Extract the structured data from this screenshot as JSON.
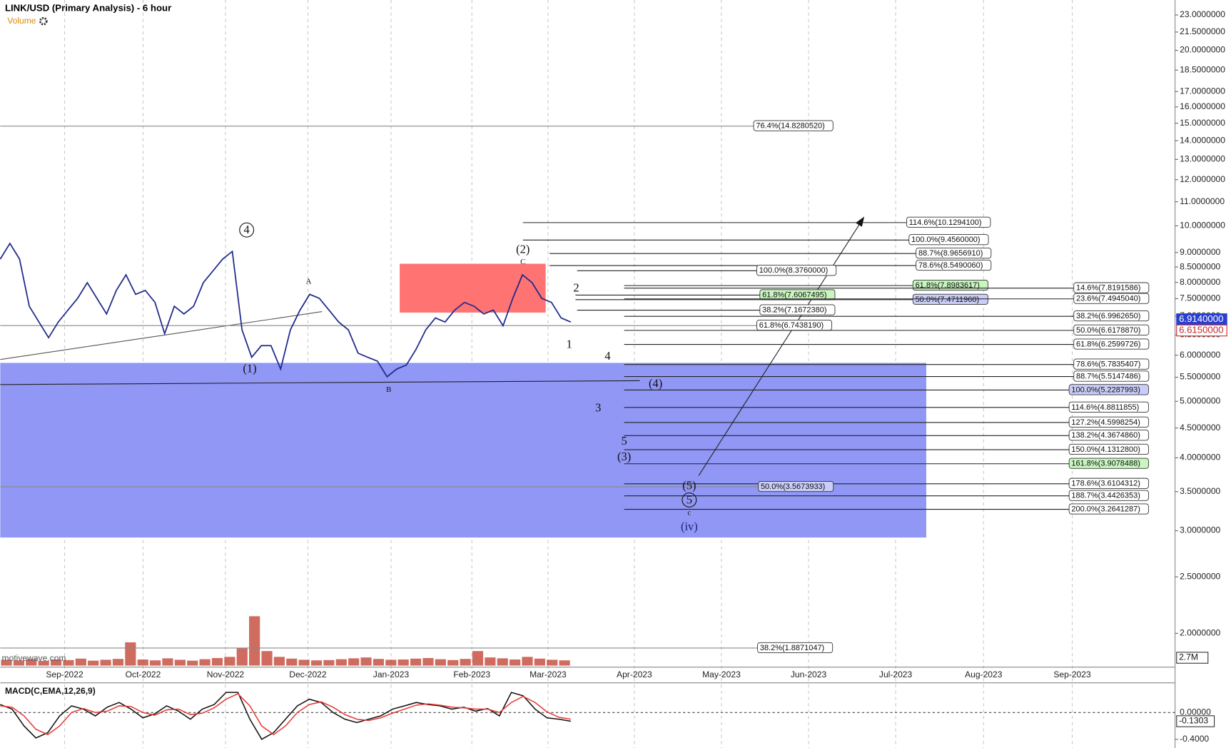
{
  "chart_data": {
    "type": "line",
    "title": "LINK/USD (Primary Analysis) - 6 hour",
    "indicator_label": "Volume",
    "watermark": "motivewave.com",
    "log_scale": true,
    "ylim": [
      1.75,
      24.4
    ],
    "yticks": [
      {
        "value": 23,
        "label": "23.0000000"
      },
      {
        "value": 21.5,
        "label": "21.5000000"
      },
      {
        "value": 20,
        "label": "20.0000000"
      },
      {
        "value": 18.5,
        "label": "18.5000000"
      },
      {
        "value": 17,
        "label": "17.0000000"
      },
      {
        "value": 16,
        "label": "16.0000000"
      },
      {
        "value": 15,
        "label": "15.0000000"
      },
      {
        "value": 14,
        "label": "14.0000000"
      },
      {
        "value": 13,
        "label": "13.0000000"
      },
      {
        "value": 12,
        "label": "12.0000000"
      },
      {
        "value": 11,
        "label": "11.0000000"
      },
      {
        "value": 10,
        "label": "10.0000000"
      },
      {
        "value": 9,
        "label": "9.0000000"
      },
      {
        "value": 8.5,
        "label": "8.5000000"
      },
      {
        "value": 8,
        "label": "8.0000000"
      },
      {
        "value": 7.5,
        "label": "7.5000000"
      },
      {
        "value": 7,
        "label": "7.0000000"
      },
      {
        "value": 6.5,
        "label": "6.5000000"
      },
      {
        "value": 6,
        "label": "6.0000000"
      },
      {
        "value": 5.5,
        "label": "5.5000000"
      },
      {
        "value": 5,
        "label": "5.0000000"
      },
      {
        "value": 4.5,
        "label": "4.5000000"
      },
      {
        "value": 4,
        "label": "4.0000000"
      },
      {
        "value": 3.5,
        "label": "3.5000000"
      },
      {
        "value": 3,
        "label": "3.0000000"
      },
      {
        "value": 2.5,
        "label": "2.5000000"
      },
      {
        "value": 2,
        "label": "2.0000000"
      }
    ],
    "xticks": [
      "Sep-2022",
      "Oct-2022",
      "Nov-2022",
      "Dec-2022",
      "Jan-2023",
      "Feb-2023",
      "Mar-2023",
      "Apr-2023",
      "May-2023",
      "Jun-2023",
      "Jul-2023",
      "Aug-2023",
      "Sep-2023"
    ],
    "grid": true,
    "series": [
      {
        "name": "LINK/USD",
        "color": "#1f2a8a",
        "values": [
          8.77,
          9.33,
          8.77,
          7.28,
          6.84,
          6.43,
          6.84,
          7.17,
          7.51,
          7.99,
          7.51,
          7.06,
          7.75,
          8.24,
          7.63,
          7.75,
          7.39,
          6.53,
          7.28,
          7.06,
          7.28,
          7.99,
          8.37,
          8.77,
          9.04,
          6.63,
          5.95,
          6.23,
          6.23,
          5.68,
          6.63,
          7.17,
          7.63,
          7.51,
          7.17,
          6.84,
          6.63,
          6.05,
          5.95,
          5.86,
          5.51,
          5.68,
          5.77,
          6.14,
          6.63,
          6.95,
          6.84,
          7.17,
          7.39,
          7.28,
          7.06,
          7.17,
          6.74,
          7.51,
          8.24,
          7.99,
          7.51,
          7.39,
          6.95,
          6.84
        ]
      }
    ],
    "price_labels": [
      {
        "value": 6.914,
        "label": "6.9140000",
        "color": "#2a3fd0"
      },
      {
        "value": 6.615,
        "label": "6.6150000",
        "color": "#c62828"
      }
    ],
    "zones": [
      {
        "color": "#ff7373",
        "top": 8.61,
        "bottom": 7.1
      },
      {
        "color": "#9097f5",
        "top": 5.82,
        "bottom": 2.92
      }
    ],
    "levels": [
      {
        "label": "76.4%(14.8280520)",
        "value": 14.828052,
        "color": "#ffffff"
      },
      {
        "label": "114.6%(10.1294100)",
        "value": 10.12941,
        "color": "#ffffff"
      },
      {
        "label": "100.0%(9.4560000)",
        "value": 9.456,
        "color": "#ffffff"
      },
      {
        "label": "88.7%(8.9656910)",
        "value": 8.965691,
        "color": "#ffffff"
      },
      {
        "label": "78.6%(8.5490060)",
        "value": 8.549006,
        "color": "#ffffff"
      },
      {
        "label": "100.0%(8.3760000)",
        "value": 8.376,
        "color": "#ffffff"
      },
      {
        "label": "61.8%(7.8983617)",
        "value": 7.8983617,
        "color": "#c8f5c0"
      },
      {
        "label": "14.6%(7.8191586)",
        "value": 7.8191586,
        "color": "#ffffff"
      },
      {
        "label": "61.8%(7.6067495)",
        "value": 7.6067495,
        "color": "#c8f5c0"
      },
      {
        "label": "50.0%(7.4711960)",
        "value": 7.471196,
        "color": "#c9cdf7"
      },
      {
        "label": "23.6%(7.4945040)",
        "value": 7.494504,
        "color": "#ffffff"
      },
      {
        "label": "38.2%(7.1672380)",
        "value": 7.167238,
        "color": "#ffffff"
      },
      {
        "label": "38.2%(6.9962650)",
        "value": 6.996265,
        "color": "#ffffff"
      },
      {
        "label": "61.8%(6.7438190)",
        "value": 6.743819,
        "color": "#ffffff"
      },
      {
        "label": "50.0%(6.6178870)",
        "value": 6.617887,
        "color": "#ffffff"
      },
      {
        "label": "61.8%(6.2599726)",
        "value": 6.2599726,
        "color": "#ffffff"
      },
      {
        "label": "78.6%(5.7835407)",
        "value": 5.7835407,
        "color": "#ffffff"
      },
      {
        "label": "88.7%(5.5147486)",
        "value": 5.5147486,
        "color": "#ffffff"
      },
      {
        "label": "100.0%(5.2287993)",
        "value": 5.2287993,
        "color": "#c9cdf7"
      },
      {
        "label": "114.6%(4.8811855)",
        "value": 4.8811855,
        "color": "#ffffff"
      },
      {
        "label": "127.2%(4.5998254)",
        "value": 4.5998254,
        "color": "#ffffff"
      },
      {
        "label": "138.2%(4.3674860)",
        "value": 4.367486,
        "color": "#ffffff"
      },
      {
        "label": "150.0%(4.1312800)",
        "value": 4.13128,
        "color": "#ffffff"
      },
      {
        "label": "161.8%(3.9078488)",
        "value": 3.9078488,
        "color": "#c8f5c0"
      },
      {
        "label": "178.6%(3.6104312)",
        "value": 3.6104312,
        "color": "#ffffff"
      },
      {
        "label": "188.7%(3.4426353)",
        "value": 3.4426353,
        "color": "#ffffff"
      },
      {
        "label": "200.0%(3.2641287)",
        "value": 3.2641287,
        "color": "#ffffff"
      },
      {
        "label": "50.0%(3.5673933)",
        "value": 3.5673933,
        "color": "#c9cdf7"
      },
      {
        "label": "38.2%(1.8871047)",
        "value": 1.8871047,
        "color": "#ffffff"
      }
    ],
    "wave_labels": [
      "4",
      "(1)",
      "A",
      "B",
      "(2)",
      "C",
      "1",
      "2",
      "4",
      "3",
      "(4)",
      "5",
      "(3)",
      "(5)",
      "5",
      "c",
      "(iv)"
    ],
    "volume": {
      "label": {
        "value": 2.7,
        "label": "2.7M"
      },
      "ylim": [
        0,
        17.3
      ],
      "color": "#c0392b",
      "values": [
        2,
        1.8,
        2.2,
        1.6,
        2.1,
        1.9,
        2.4,
        1.7,
        2,
        2.3,
        8,
        2.1,
        1.8,
        2.5,
        2,
        1.7,
        2.2,
        2.6,
        3,
        6,
        17,
        5,
        3,
        2.4,
        2,
        1.8,
        1.9,
        2.2,
        2.5,
        2.8,
        2.3,
        2,
        2.1,
        2.4,
        2.6,
        2.2,
        1.9,
        2.3,
        5,
        2.8,
        2.5,
        2.1,
        3,
        2.4,
        2,
        1.8
      ]
    },
    "macd": {
      "title": "MACD(C,EMA,12,26,9)",
      "ylim": [
        -0.53,
        0.42
      ],
      "yticks": [
        {
          "value": 0,
          "label": "0.00000"
        },
        {
          "value": -0.4,
          "label": "-0.4000"
        }
      ],
      "current": {
        "value": -0.1303,
        "label": "-0.1303"
      },
      "series": [
        {
          "name": "MACD",
          "color": "#111111",
          "values": [
            0.12,
            0.05,
            -0.2,
            -0.38,
            -0.3,
            -0.05,
            0.1,
            0.05,
            -0.05,
            0.08,
            0.15,
            0.05,
            -0.08,
            -0.02,
            0.1,
            0.02,
            -0.1,
            0.05,
            0.12,
            0.3,
            0.3,
            -0.1,
            -0.4,
            -0.3,
            -0.1,
            0.1,
            0.2,
            0.15,
            0.0,
            -0.1,
            -0.15,
            -0.1,
            -0.05,
            0.05,
            0.1,
            0.15,
            0.12,
            0.1,
            0.05,
            0.08,
            0.02,
            0.06,
            -0.05,
            0.3,
            0.25,
            0.05,
            -0.08,
            -0.1,
            -0.13
          ]
        },
        {
          "name": "Signal",
          "color": "#e53935",
          "values": [
            0.1,
            0.08,
            -0.05,
            -0.25,
            -0.33,
            -0.2,
            0.0,
            0.06,
            0.0,
            0.02,
            0.1,
            0.09,
            0.0,
            -0.04,
            0.04,
            0.05,
            -0.03,
            -0.01,
            0.07,
            0.2,
            0.28,
            0.1,
            -0.2,
            -0.33,
            -0.2,
            0.0,
            0.12,
            0.16,
            0.08,
            -0.03,
            -0.1,
            -0.12,
            -0.08,
            -0.01,
            0.05,
            0.11,
            0.13,
            0.11,
            0.08,
            0.07,
            0.05,
            0.05,
            0.0,
            0.15,
            0.24,
            0.15,
            0.01,
            -0.07,
            -0.1
          ]
        }
      ]
    }
  }
}
